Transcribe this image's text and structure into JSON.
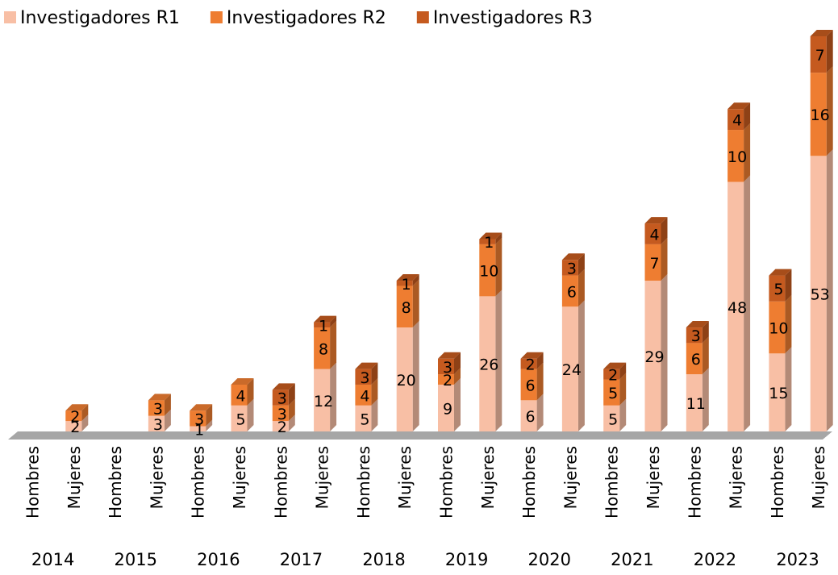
{
  "chart_data": {
    "type": "bar3d_stacked",
    "categories": [
      "Hombres",
      "Mujeres",
      "Hombres",
      "Mujeres",
      "Hombres",
      "Mujeres",
      "Hombres",
      "Mujeres",
      "Hombres",
      "Mujeres",
      "Hombres",
      "Mujeres",
      "Hombres",
      "Mujeres",
      "Hombres",
      "Mujeres",
      "Hombres",
      "Mujeres",
      "Hombres",
      "Mujeres"
    ],
    "group_labels": [
      "2014",
      "2015",
      "2016",
      "2017",
      "2018",
      "2019",
      "2020",
      "2021",
      "2022",
      "2023"
    ],
    "series": [
      {
        "name": "Investigadores R1",
        "color": "#f8bfa5",
        "values": [
          null,
          2,
          null,
          3,
          1,
          5,
          2,
          12,
          5,
          20,
          9,
          26,
          6,
          24,
          5,
          29,
          11,
          48,
          15,
          53
        ]
      },
      {
        "name": "Investigadores R2",
        "color": "#ee7d31",
        "values": [
          null,
          2,
          null,
          3,
          3,
          4,
          3,
          8,
          4,
          8,
          2,
          10,
          6,
          6,
          5,
          7,
          6,
          10,
          10,
          16
        ]
      },
      {
        "name": "Investigadores R3",
        "color": "#c55a1f",
        "values": [
          null,
          null,
          null,
          null,
          null,
          null,
          3,
          1,
          3,
          1,
          3,
          1,
          2,
          3,
          2,
          4,
          3,
          4,
          5,
          7
        ]
      }
    ],
    "legend": "top"
  }
}
